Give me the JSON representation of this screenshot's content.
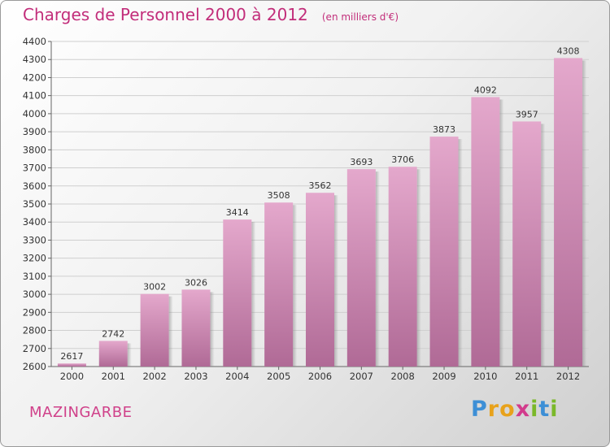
{
  "chart_data": {
    "type": "bar",
    "title": "Charges de Personnel 2000 à 2012",
    "subtitle": "(en milliers d'€)",
    "categories": [
      "2000",
      "2001",
      "2002",
      "2003",
      "2004",
      "2005",
      "2006",
      "2007",
      "2008",
      "2009",
      "2010",
      "2011",
      "2012"
    ],
    "values": [
      2617,
      2742,
      3002,
      3026,
      3414,
      3508,
      3562,
      3693,
      3706,
      3873,
      4092,
      3957,
      4308
    ],
    "ylim": [
      2600,
      4400
    ],
    "yticks": [
      2600,
      2700,
      2800,
      2900,
      3000,
      3100,
      3200,
      3300,
      3400,
      3500,
      3600,
      3700,
      3800,
      3900,
      4000,
      4100,
      4200,
      4300,
      4400
    ],
    "xlabel": "",
    "ylabel": "",
    "grid": true,
    "bar_color_top": "#e4a8cc",
    "bar_color_bottom": "#b06a96"
  },
  "footer": {
    "city": "MAZINGARBE",
    "logo_letters": [
      "P",
      "r",
      "o",
      "x",
      "i",
      "t",
      "i"
    ],
    "logo_colors": [
      "#3d8fd6",
      "#e8a21b",
      "#e8a21b",
      "#d23b8c",
      "#7ab829",
      "#3d8fd6",
      "#7ab829"
    ]
  }
}
